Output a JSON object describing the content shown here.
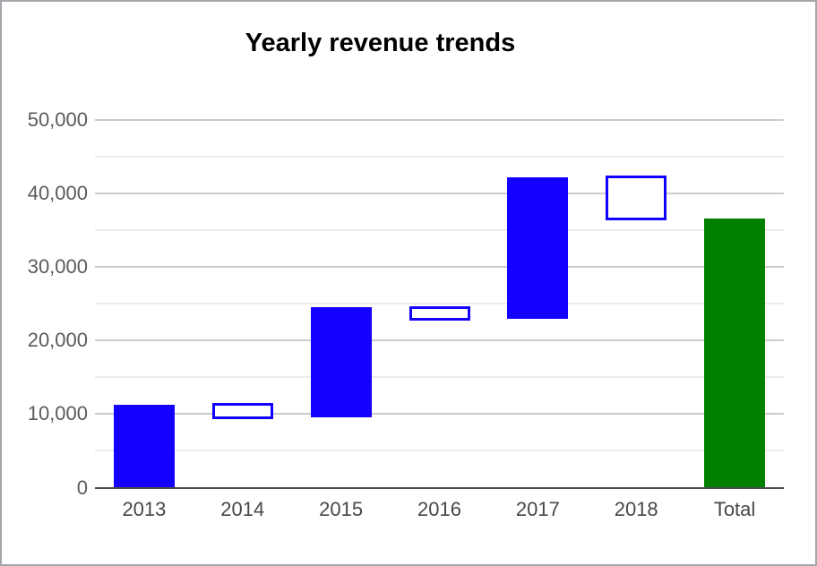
{
  "frame": {
    "border_color": "#a5a5ab",
    "background_color": "#ffffff"
  },
  "chart_data": {
    "type": "bar",
    "subtype": "waterfall",
    "title": "Yearly revenue trends",
    "xlabel": "",
    "ylabel": "",
    "legend": "none",
    "grid": "on",
    "ylim": [
      0,
      50000
    ],
    "categories": [
      "2013",
      "2014",
      "2015",
      "2016",
      "2017",
      "2018",
      "Total"
    ],
    "bars": [
      {
        "label": "2013",
        "start": 0,
        "end": 11300,
        "change": 11300,
        "style": "solid-blue"
      },
      {
        "label": "2014",
        "start": 11300,
        "end": 9500,
        "change": -1800,
        "style": "hollow-blue"
      },
      {
        "label": "2015",
        "start": 9500,
        "end": 24500,
        "change": 15000,
        "style": "solid-blue"
      },
      {
        "label": "2016",
        "start": 24500,
        "end": 22900,
        "change": -1600,
        "style": "hollow-blue"
      },
      {
        "label": "2017",
        "start": 22900,
        "end": 42200,
        "change": 19300,
        "style": "solid-blue"
      },
      {
        "label": "2018",
        "start": 42200,
        "end": 36500,
        "change": -5700,
        "style": "hollow-blue"
      },
      {
        "label": "Total",
        "start": 0,
        "end": 36500,
        "change": 36500,
        "style": "solid-green"
      }
    ],
    "y_major_ticks": [
      {
        "value": 0,
        "label": "0"
      },
      {
        "value": 10000,
        "label": "10,000"
      },
      {
        "value": 20000,
        "label": "20,000"
      },
      {
        "value": 30000,
        "label": "30,000"
      },
      {
        "value": 40000,
        "label": "40,000"
      },
      {
        "value": 50000,
        "label": "50,000"
      }
    ],
    "y_minor_ticks": [
      5000,
      15000,
      25000,
      35000,
      45000
    ],
    "colors": {
      "increase_fill": "#1400ff",
      "decrease_border": "#1400ff",
      "total_fill": "#008000",
      "major_grid": "#cccccc",
      "minor_grid": "#ececec",
      "axis_line": "#4d4d4d",
      "y_tick_text": "#5a5a5a",
      "x_tick_text": "#474747",
      "title_text": "#000000"
    }
  }
}
